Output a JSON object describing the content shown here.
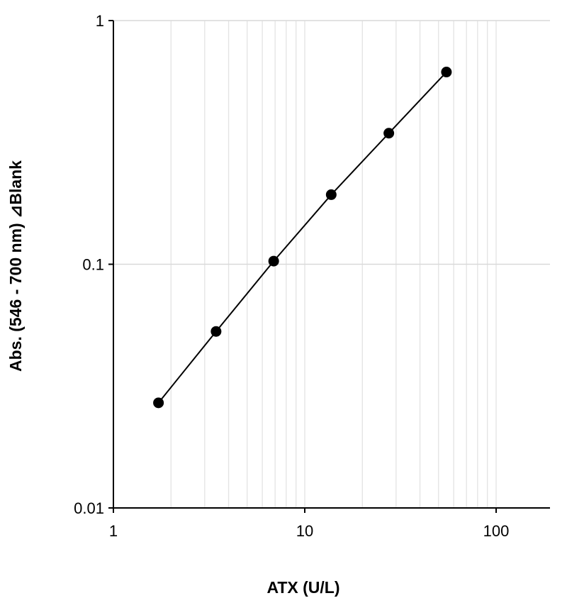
{
  "chart_data": {
    "type": "scatter",
    "title": "",
    "xlabel": "ATX (U/L)",
    "ylabel": "Abs. (546 - 700 nm) ⊿Blank",
    "x_scale": "log",
    "y_scale": "log",
    "xlim": [
      1,
      200
    ],
    "ylim": [
      0.01,
      1
    ],
    "x_ticks": [
      1,
      10,
      100
    ],
    "x_tick_labels": [
      "1",
      "10",
      "100"
    ],
    "y_ticks": [
      0.01,
      0.1,
      1
    ],
    "y_tick_labels": [
      "0.01",
      "0.1",
      "1"
    ],
    "grid": true,
    "legend": "none",
    "series": [
      {
        "x": [
          1.72,
          3.44,
          6.88,
          13.75,
          27.5,
          55
        ],
        "y": [
          0.027,
          0.053,
          0.103,
          0.193,
          0.345,
          0.615
        ],
        "line": true,
        "marker": "circle",
        "color": "#000000"
      }
    ]
  }
}
